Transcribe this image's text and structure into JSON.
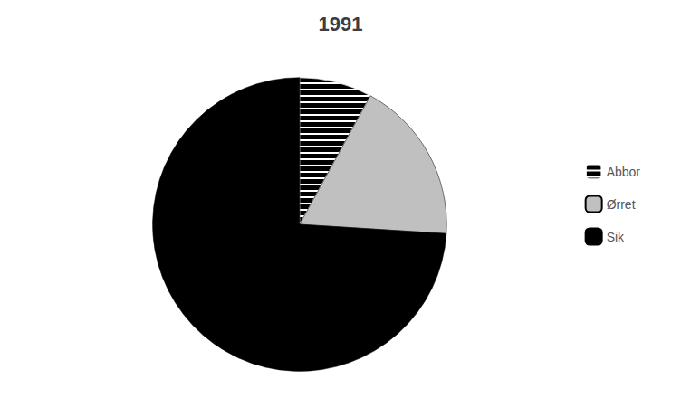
{
  "chart_data": {
    "type": "pie",
    "title": "1991",
    "categories": [
      "Abbor",
      "Ørret",
      "Sik"
    ],
    "values": [
      8,
      18,
      74
    ],
    "colors": [
      "#000000",
      "#c0c0c0",
      "#000000"
    ],
    "legend": "right"
  }
}
